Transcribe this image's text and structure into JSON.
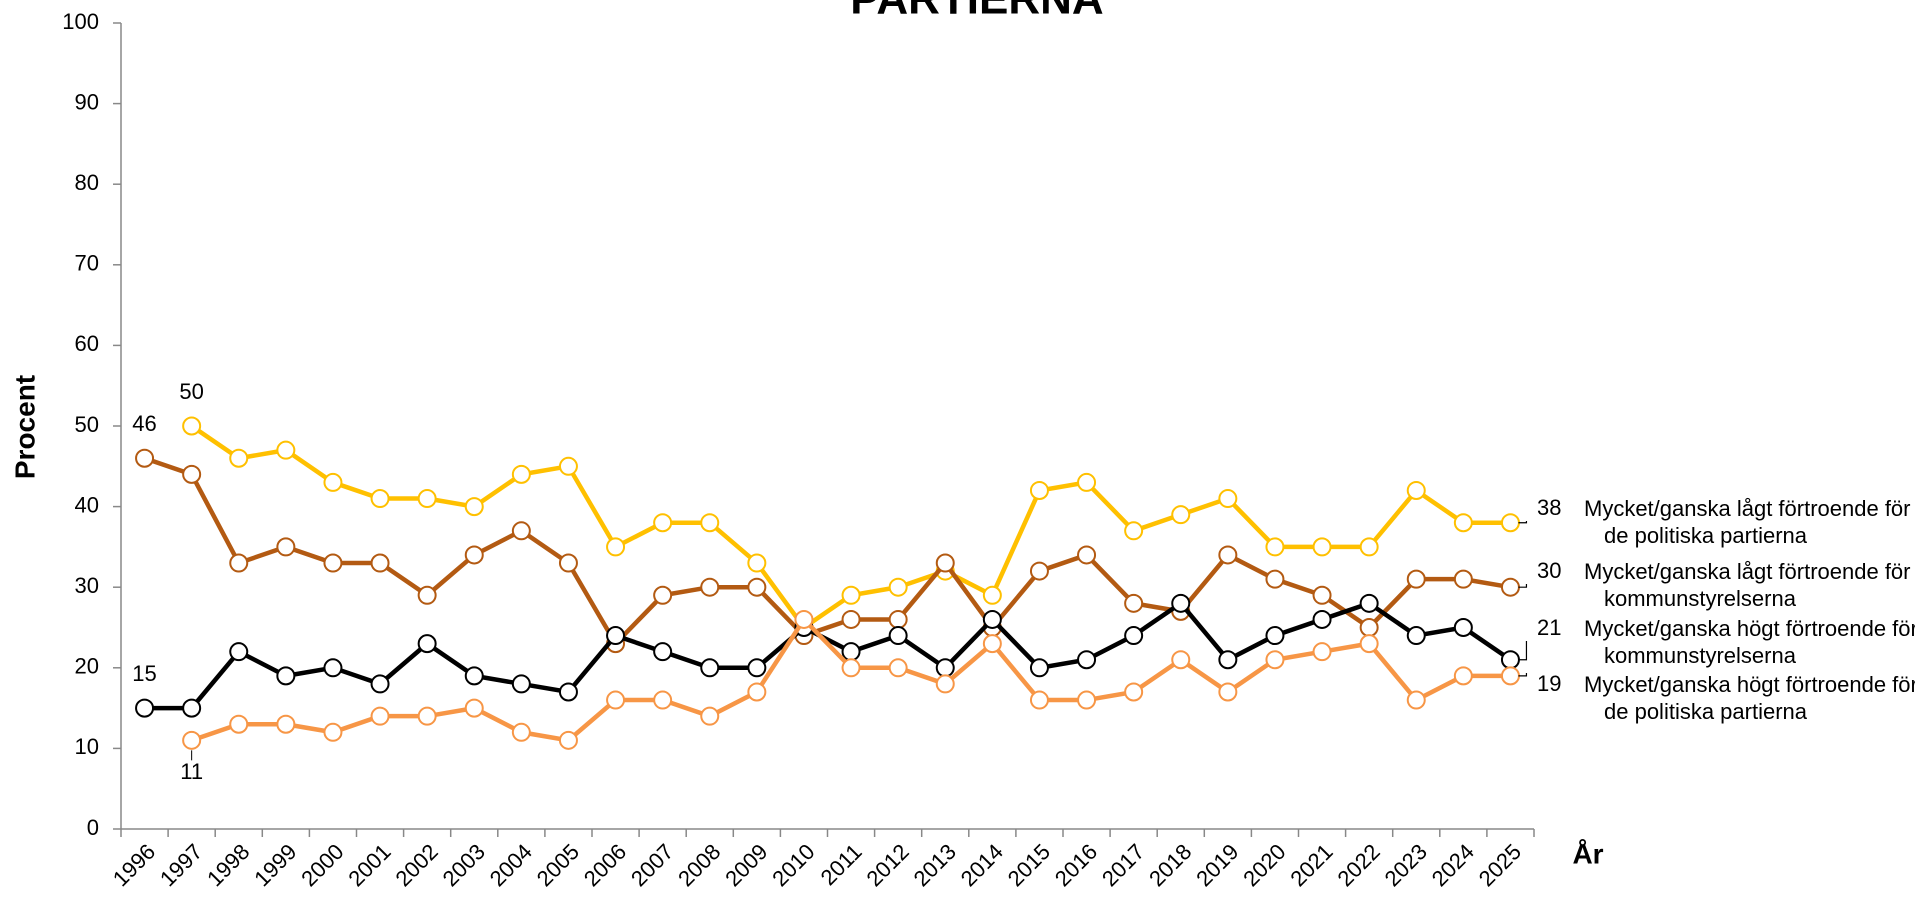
{
  "chart_data": {
    "type": "line",
    "title": "PARTIERNA",
    "x_label": "År",
    "y_label": "Procent",
    "categories": [
      "1996",
      "1997",
      "1998",
      "1999",
      "2000",
      "2001",
      "2002",
      "2003",
      "2004",
      "2005",
      "2006",
      "2007",
      "2008",
      "2009",
      "2010",
      "2011",
      "2012",
      "2013",
      "2014",
      "2015",
      "2016",
      "2017",
      "2018",
      "2019",
      "2020",
      "2021",
      "2022",
      "2023",
      "2024",
      "2025"
    ],
    "series": [
      {
        "name": "Mycket/ganska lågt förtroende för de politiska partierna",
        "color": "#ffc000",
        "values": [
          null,
          50,
          46,
          47,
          43,
          41,
          41,
          40,
          44,
          45,
          35,
          38,
          38,
          33,
          25,
          29,
          30,
          32,
          29,
          42,
          43,
          37,
          39,
          41,
          35,
          35,
          35,
          42,
          38,
          38
        ]
      },
      {
        "name": "Mycket/ganska lågt förtroende för kommunstyrelserna",
        "color": "#b35a12",
        "values": [
          46,
          44,
          33,
          35,
          33,
          33,
          29,
          34,
          37,
          33,
          23,
          29,
          30,
          30,
          24,
          26,
          26,
          33,
          25,
          32,
          34,
          28,
          27,
          34,
          31,
          29,
          25,
          31,
          31,
          30
        ]
      },
      {
        "name": "Mycket/ganska högt förtroende för kommunstyrelserna",
        "color": "#000000",
        "values": [
          15,
          15,
          22,
          19,
          20,
          18,
          23,
          19,
          18,
          17,
          24,
          22,
          20,
          20,
          25,
          22,
          24,
          20,
          26,
          20,
          21,
          24,
          28,
          21,
          24,
          26,
          28,
          24,
          25,
          21
        ]
      },
      {
        "name": "Mycket/ganska högt förtroende för de politiska partierna",
        "color": "#f79646",
        "values": [
          null,
          11,
          13,
          13,
          12,
          14,
          14,
          15,
          12,
          11,
          16,
          16,
          14,
          17,
          26,
          20,
          20,
          18,
          23,
          16,
          16,
          17,
          21,
          17,
          21,
          22,
          23,
          16,
          19,
          19
        ]
      }
    ],
    "ylim": [
      0,
      100
    ],
    "yticks": [
      0,
      10,
      20,
      30,
      40,
      50,
      60,
      70,
      80,
      90,
      100
    ],
    "grid": false
  }
}
